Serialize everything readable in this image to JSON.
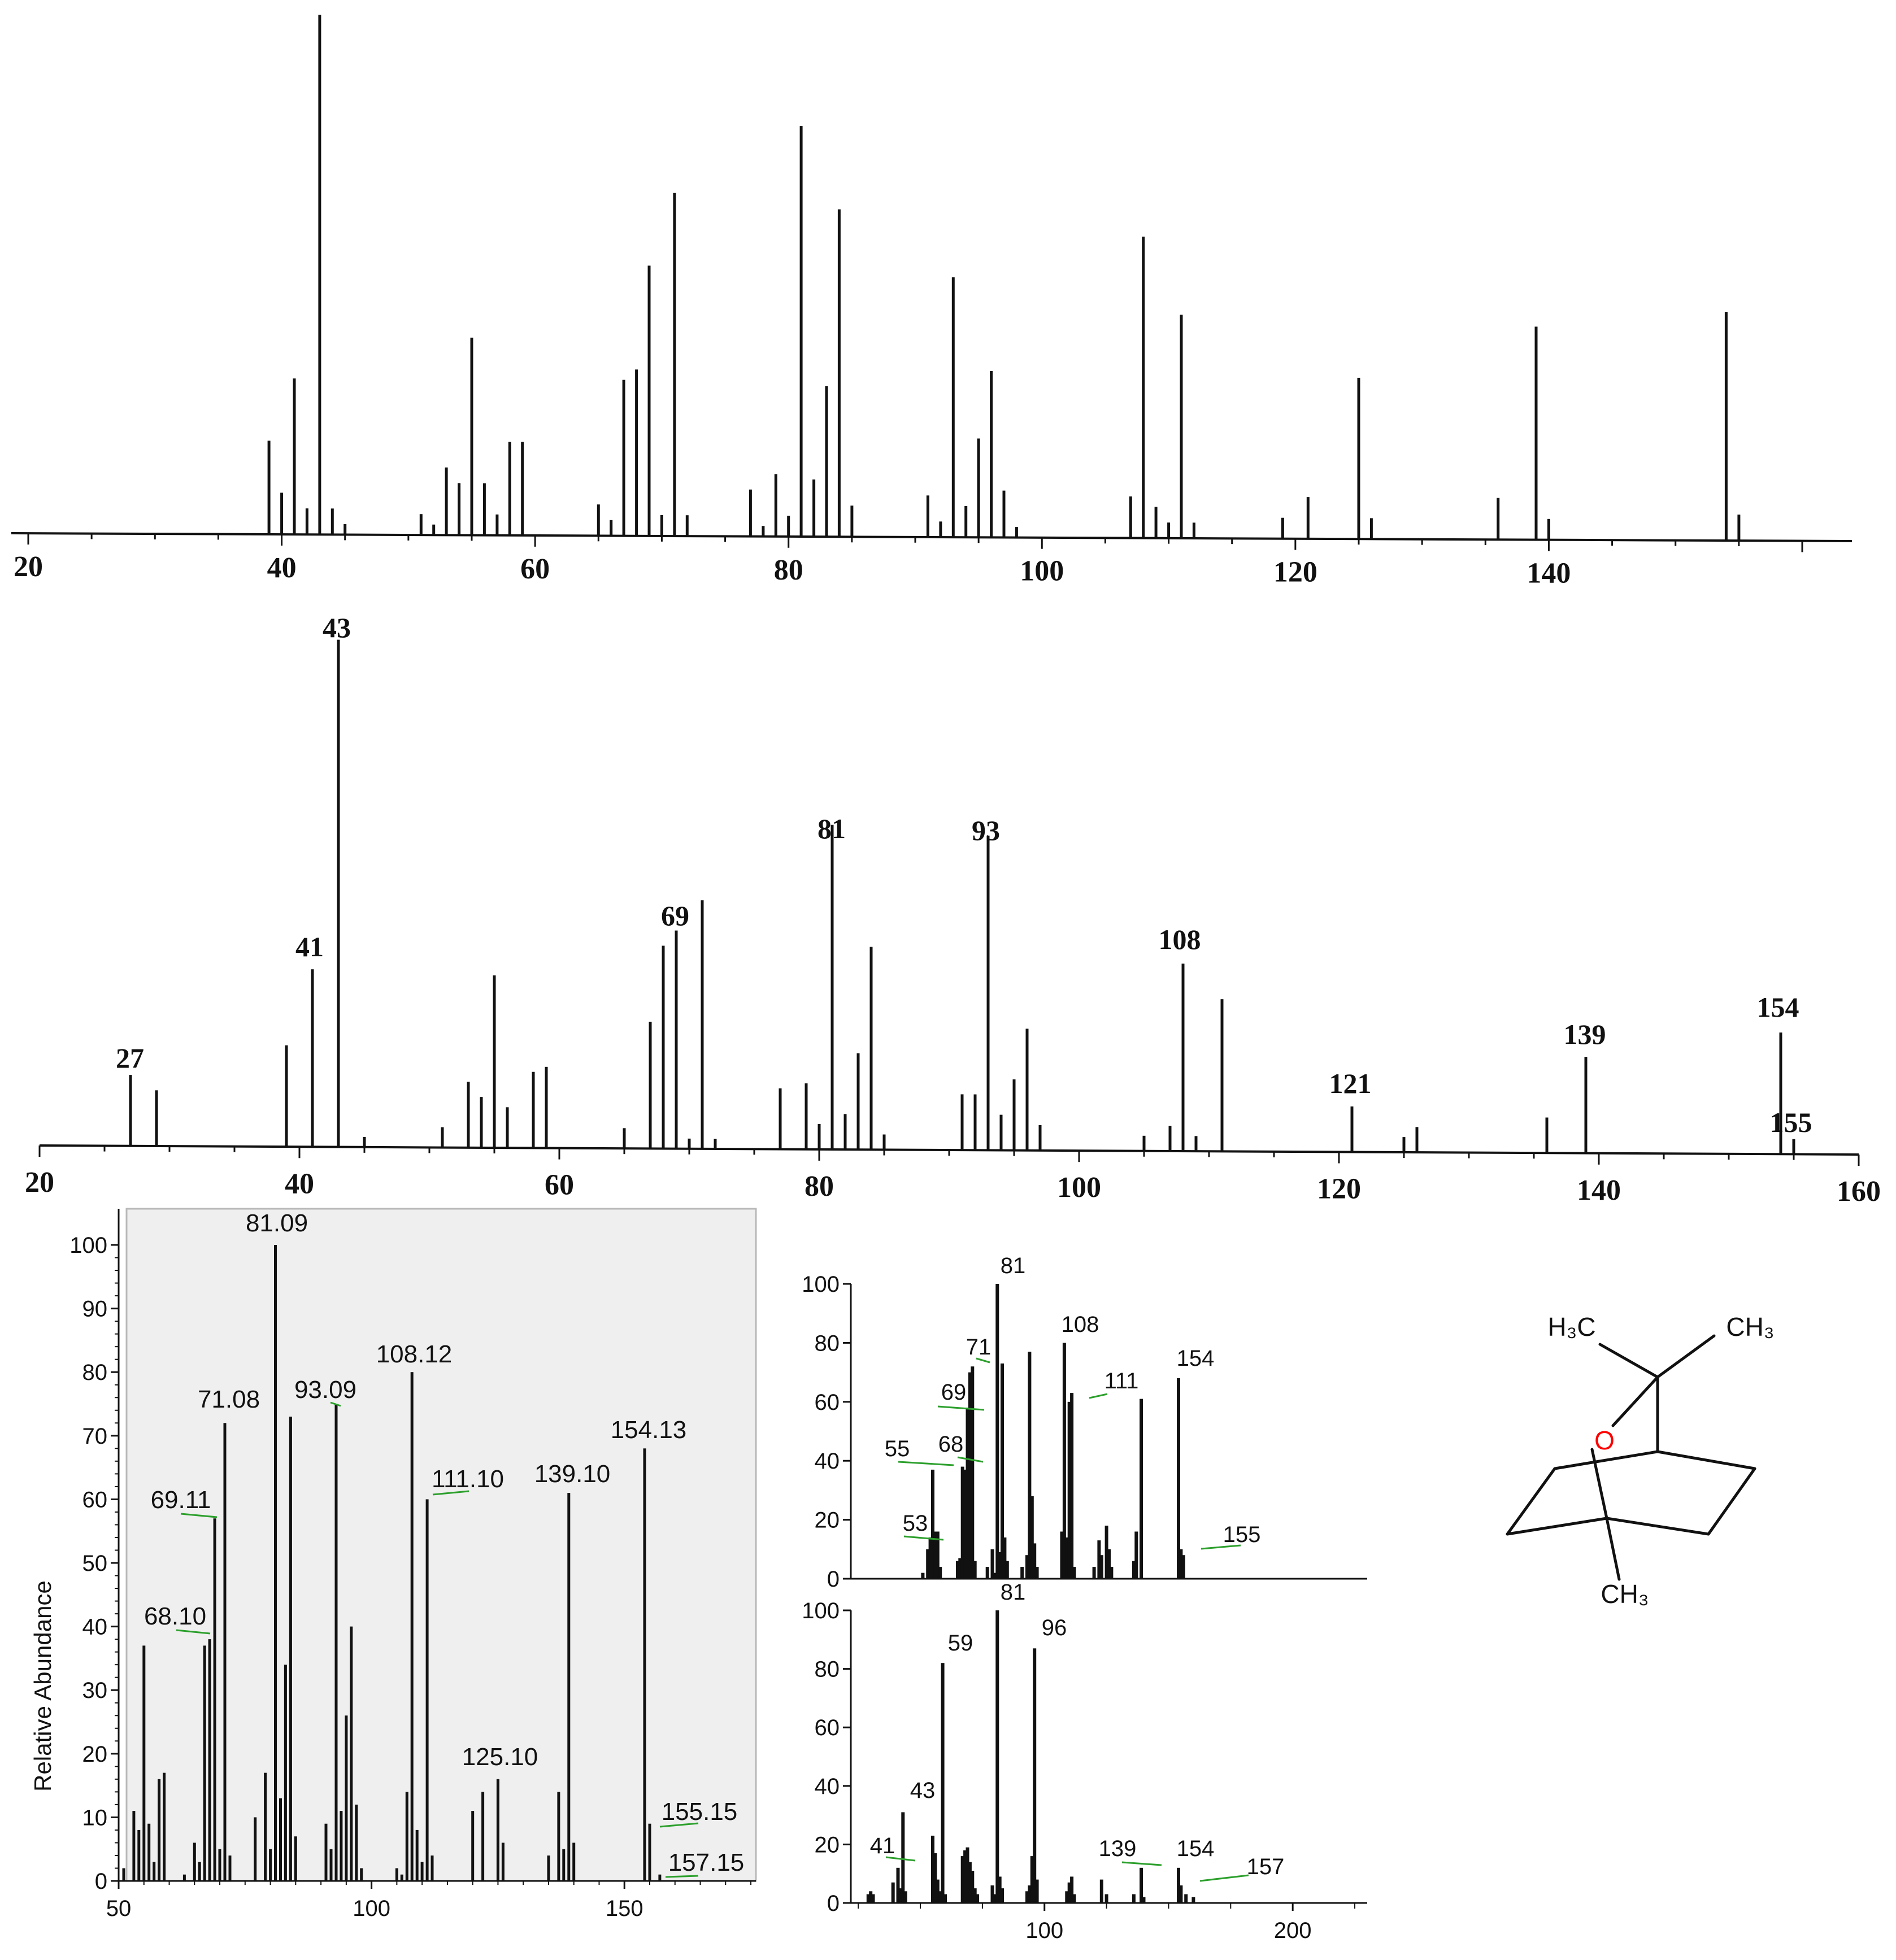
{
  "chart_data": [
    {
      "id": "ms1",
      "type": "bar",
      "title": "",
      "xlabel": "",
      "ylabel": "",
      "xlim": [
        20,
        160
      ],
      "ylim": [
        0,
        100
      ],
      "x_ticks": [
        "20",
        "40",
        "60",
        "80",
        "100",
        "120",
        "140"
      ],
      "peaks": [
        [
          39,
          18
        ],
        [
          40,
          8
        ],
        [
          41,
          30
        ],
        [
          42,
          5
        ],
        [
          43,
          100
        ],
        [
          44,
          5
        ],
        [
          45,
          2
        ],
        [
          51,
          4
        ],
        [
          52,
          2
        ],
        [
          53,
          13
        ],
        [
          54,
          10
        ],
        [
          55,
          38
        ],
        [
          56,
          10
        ],
        [
          57,
          4
        ],
        [
          58,
          18
        ],
        [
          59,
          18
        ],
        [
          65,
          6
        ],
        [
          66,
          3
        ],
        [
          67,
          30
        ],
        [
          68,
          32
        ],
        [
          69,
          52
        ],
        [
          70,
          4
        ],
        [
          71,
          66
        ],
        [
          72,
          4
        ],
        [
          77,
          9
        ],
        [
          78,
          2
        ],
        [
          79,
          12
        ],
        [
          80,
          4
        ],
        [
          81,
          79
        ],
        [
          82,
          11
        ],
        [
          83,
          29
        ],
        [
          84,
          63
        ],
        [
          85,
          6
        ],
        [
          91,
          8
        ],
        [
          92,
          3
        ],
        [
          93,
          50
        ],
        [
          94,
          6
        ],
        [
          95,
          19
        ],
        [
          96,
          32
        ],
        [
          97,
          9
        ],
        [
          98,
          2
        ],
        [
          107,
          8
        ],
        [
          108,
          58
        ],
        [
          109,
          6
        ],
        [
          110,
          3
        ],
        [
          111,
          43
        ],
        [
          112,
          3
        ],
        [
          119,
          4
        ],
        [
          121,
          8
        ],
        [
          125,
          31
        ],
        [
          126,
          4
        ],
        [
          136,
          8
        ],
        [
          139,
          41
        ],
        [
          140,
          4
        ],
        [
          154,
          44
        ],
        [
          155,
          5
        ]
      ]
    },
    {
      "id": "ms2",
      "type": "bar",
      "title": "",
      "xlabel": "",
      "ylabel": "",
      "xlim": [
        20,
        160
      ],
      "ylim": [
        0,
        100
      ],
      "x_ticks": [
        "20",
        "40",
        "60",
        "80",
        "100",
        "120",
        "140",
        "160"
      ],
      "peaks": [
        [
          27,
          14
        ],
        [
          29,
          11
        ],
        [
          39,
          20
        ],
        [
          41,
          35
        ],
        [
          43,
          100
        ],
        [
          45,
          2
        ],
        [
          51,
          4
        ],
        [
          53,
          13
        ],
        [
          54,
          10
        ],
        [
          55,
          34
        ],
        [
          56,
          8
        ],
        [
          58,
          15
        ],
        [
          59,
          16
        ],
        [
          65,
          4
        ],
        [
          67,
          25
        ],
        [
          68,
          40
        ],
        [
          69,
          43
        ],
        [
          70,
          2
        ],
        [
          71,
          49
        ],
        [
          72,
          2
        ],
        [
          77,
          12
        ],
        [
          79,
          13
        ],
        [
          80,
          5
        ],
        [
          81,
          64
        ],
        [
          82,
          7
        ],
        [
          83,
          19
        ],
        [
          84,
          40
        ],
        [
          85,
          3
        ],
        [
          91,
          11
        ],
        [
          92,
          11
        ],
        [
          93,
          62
        ],
        [
          94,
          7
        ],
        [
          95,
          14
        ],
        [
          96,
          24
        ],
        [
          97,
          5
        ],
        [
          105,
          3
        ],
        [
          107,
          5
        ],
        [
          108,
          37
        ],
        [
          109,
          3
        ],
        [
          111,
          30
        ],
        [
          121,
          9
        ],
        [
          125,
          3
        ],
        [
          126,
          5
        ],
        [
          136,
          7
        ],
        [
          139,
          19
        ],
        [
          154,
          24
        ],
        [
          155,
          3
        ]
      ],
      "annotations": [
        "27",
        "41",
        "43",
        "69",
        "81",
        "93",
        "108",
        "121",
        "139",
        "154",
        "155"
      ]
    },
    {
      "id": "ms3",
      "type": "bar",
      "title": "",
      "xlabel": "",
      "ylabel": "Relative Abundance",
      "xlim": [
        50,
        176
      ],
      "ylim": [
        0,
        100
      ],
      "y_ticks": [
        0,
        10,
        20,
        30,
        40,
        50,
        60,
        70,
        80,
        90,
        100
      ],
      "x_ticks": [
        50,
        100,
        150
      ],
      "peaks": [
        [
          51,
          2
        ],
        [
          53,
          11
        ],
        [
          54,
          8
        ],
        [
          55,
          37
        ],
        [
          56,
          9
        ],
        [
          57,
          3
        ],
        [
          58,
          16
        ],
        [
          59,
          17
        ],
        [
          63,
          1
        ],
        [
          65,
          6
        ],
        [
          66,
          3
        ],
        [
          67,
          37
        ],
        [
          68,
          38
        ],
        [
          69,
          57
        ],
        [
          70,
          5
        ],
        [
          71,
          72
        ],
        [
          72,
          4
        ],
        [
          77,
          10
        ],
        [
          79,
          17
        ],
        [
          80,
          5
        ],
        [
          81,
          100
        ],
        [
          82,
          13
        ],
        [
          83,
          34
        ],
        [
          84,
          73
        ],
        [
          85,
          7
        ],
        [
          91,
          9
        ],
        [
          92,
          5
        ],
        [
          93,
          75
        ],
        [
          94,
          11
        ],
        [
          95,
          26
        ],
        [
          96,
          40
        ],
        [
          97,
          12
        ],
        [
          98,
          2
        ],
        [
          105,
          2
        ],
        [
          106,
          1
        ],
        [
          107,
          14
        ],
        [
          108,
          80
        ],
        [
          109,
          8
        ],
        [
          110,
          3
        ],
        [
          111,
          60
        ],
        [
          112,
          4
        ],
        [
          120,
          11
        ],
        [
          122,
          14
        ],
        [
          125,
          16
        ],
        [
          126,
          6
        ],
        [
          135,
          4
        ],
        [
          137,
          14
        ],
        [
          138,
          5
        ],
        [
          139,
          61
        ],
        [
          140,
          6
        ],
        [
          154,
          68
        ],
        [
          155,
          9
        ],
        [
          157,
          1
        ]
      ],
      "annotations": [
        "81.09",
        "71.08",
        "93.09",
        "108.12",
        "69.11",
        "111.10",
        "139.10",
        "154.13",
        "68.10",
        "125.10",
        "155.15",
        "157.15"
      ]
    },
    {
      "id": "ms4",
      "type": "bar",
      "title": "",
      "xlabel": "",
      "ylabel": "",
      "xlim": [
        22,
        230
      ],
      "ylim": [
        0,
        100
      ],
      "y_ticks": [
        "0",
        "20",
        "40",
        "60",
        "80",
        "100"
      ],
      "peaks": [
        [
          51,
          2
        ],
        [
          53,
          10
        ],
        [
          54,
          14
        ],
        [
          55,
          37
        ],
        [
          56,
          16
        ],
        [
          57,
          16
        ],
        [
          58,
          4
        ],
        [
          65,
          6
        ],
        [
          66,
          7
        ],
        [
          67,
          38
        ],
        [
          68,
          37
        ],
        [
          69,
          58
        ],
        [
          70,
          70
        ],
        [
          71,
          72
        ],
        [
          72,
          6
        ],
        [
          77,
          4
        ],
        [
          79,
          10
        ],
        [
          80,
          2
        ],
        [
          81,
          100
        ],
        [
          82,
          9
        ],
        [
          83,
          73
        ],
        [
          84,
          14
        ],
        [
          85,
          6
        ],
        [
          91,
          4
        ],
        [
          93,
          8
        ],
        [
          94,
          77
        ],
        [
          95,
          28
        ],
        [
          96,
          12
        ],
        [
          97,
          4
        ],
        [
          107,
          16
        ],
        [
          108,
          80
        ],
        [
          109,
          14
        ],
        [
          110,
          60
        ],
        [
          111,
          63
        ],
        [
          112,
          4
        ],
        [
          120,
          4
        ],
        [
          122,
          13
        ],
        [
          123,
          8
        ],
        [
          125,
          18
        ],
        [
          126,
          10
        ],
        [
          127,
          4
        ],
        [
          136,
          6
        ],
        [
          137,
          16
        ],
        [
          139,
          61
        ],
        [
          154,
          68
        ],
        [
          155,
          10
        ],
        [
          156,
          8
        ]
      ],
      "annotations": [
        "81",
        "71",
        "108",
        "69",
        "111",
        "154",
        "55",
        "68",
        "53",
        "155"
      ]
    },
    {
      "id": "ms5",
      "type": "bar",
      "title": "",
      "xlabel": "",
      "ylabel": "",
      "xlim": [
        22,
        230
      ],
      "ylim": [
        0,
        100
      ],
      "y_ticks": [
        "0",
        "20",
        "40",
        "60",
        "80",
        "100"
      ],
      "x_ticks": [
        "100",
        "200"
      ],
      "peaks": [
        [
          29,
          3
        ],
        [
          30,
          4
        ],
        [
          31,
          3
        ],
        [
          39,
          7
        ],
        [
          41,
          12
        ],
        [
          42,
          5
        ],
        [
          43,
          31
        ],
        [
          44,
          4
        ],
        [
          55,
          23
        ],
        [
          56,
          17
        ],
        [
          57,
          8
        ],
        [
          58,
          4
        ],
        [
          59,
          82
        ],
        [
          60,
          3
        ],
        [
          67,
          16
        ],
        [
          68,
          18
        ],
        [
          69,
          19
        ],
        [
          70,
          14
        ],
        [
          71,
          11
        ],
        [
          72,
          5
        ],
        [
          73,
          3
        ],
        [
          79,
          6
        ],
        [
          80,
          3
        ],
        [
          81,
          100
        ],
        [
          82,
          9
        ],
        [
          83,
          5
        ],
        [
          93,
          4
        ],
        [
          94,
          6
        ],
        [
          95,
          16
        ],
        [
          96,
          87
        ],
        [
          97,
          8
        ],
        [
          109,
          4
        ],
        [
          110,
          7
        ],
        [
          111,
          9
        ],
        [
          112,
          3
        ],
        [
          123,
          8
        ],
        [
          125,
          3
        ],
        [
          136,
          3
        ],
        [
          139,
          12
        ],
        [
          140,
          2
        ],
        [
          154,
          12
        ],
        [
          155,
          6
        ],
        [
          157,
          3
        ],
        [
          160,
          2
        ]
      ],
      "annotations": [
        "81",
        "59",
        "96",
        "43",
        "41",
        "139",
        "154",
        "157"
      ]
    }
  ],
  "structure": {
    "atoms": {
      "h3c": "H₃C",
      "ch3_top": "CH₃",
      "oxygen": "O",
      "ch3_bottom": "CH₃"
    }
  },
  "colors": {
    "leader": "#2ca02c",
    "oxygen": "#ff0000",
    "panel_bg": "#efefef"
  }
}
